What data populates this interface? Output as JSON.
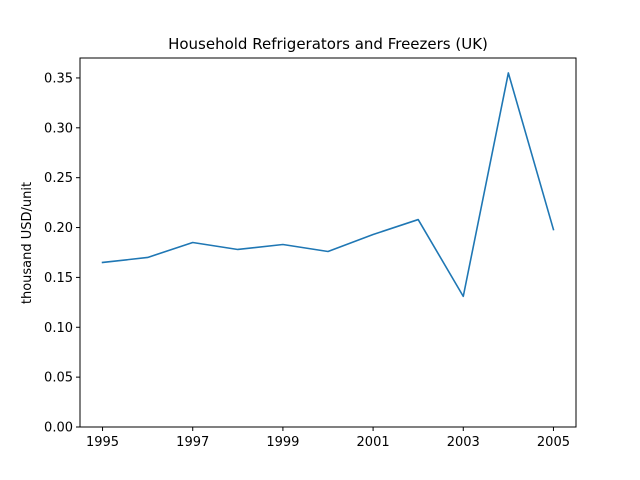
{
  "chart_data": {
    "type": "line",
    "title": "Household Refrigerators and Freezers (UK)",
    "xlabel": "",
    "ylabel": "thousand USD/unit",
    "x": [
      1995,
      1996,
      1997,
      1998,
      1999,
      2000,
      2001,
      2002,
      2003,
      2004,
      2005
    ],
    "series": [
      {
        "values": [
          0.165,
          0.17,
          0.185,
          0.178,
          0.183,
          0.176,
          0.193,
          0.208,
          0.131,
          0.355,
          0.198
        ],
        "color": "#1f77b4"
      }
    ],
    "xlim": [
      1994.5,
      2005.5
    ],
    "ylim": [
      0.0,
      0.37
    ],
    "xticks": [
      "1995",
      "1997",
      "1999",
      "2001",
      "2003",
      "2005"
    ],
    "yticks": [
      "0.00",
      "0.05",
      "0.10",
      "0.15",
      "0.20",
      "0.25",
      "0.30",
      "0.35"
    ],
    "grid": false
  }
}
